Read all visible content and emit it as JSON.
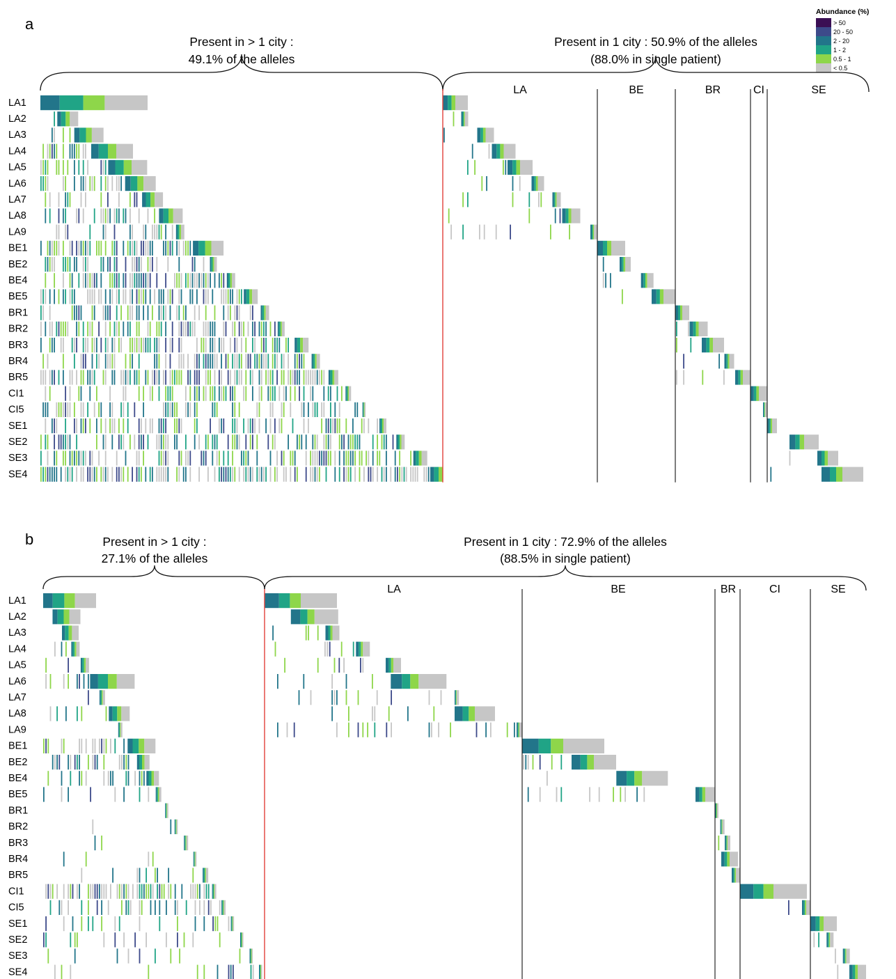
{
  "colors": {
    "gt50": "#3b0f54",
    "20to50": "#3d4a8a",
    "2to20": "#22758a",
    "1to2": "#20a486",
    "0.5to1": "#8ed64a",
    "lt0.5": "#c6c6c6",
    "divider_red": "#e0403a",
    "divider": "#111111"
  },
  "legend": {
    "title": "Abundance (%)",
    "items": [
      {
        "label": "> 50",
        "key": "gt50"
      },
      {
        "label": "20 - 50",
        "key": "20to50"
      },
      {
        "label": "2 - 20",
        "key": "2to20"
      },
      {
        "label": "1 - 2",
        "key": "1to2"
      },
      {
        "label": "0.5 - 1",
        "key": "0.5to1"
      },
      {
        "label": "< 0.5",
        "key": "lt0.5"
      }
    ]
  },
  "chart_data": [
    {
      "type": "heatmap",
      "panel": "a",
      "rows": [
        "LA1",
        "LA2",
        "LA3",
        "LA4",
        "LA5",
        "LA6",
        "LA7",
        "LA8",
        "LA9",
        "BE1",
        "BE2",
        "BE4",
        "BE5",
        "BR1",
        "BR2",
        "BR3",
        "BR4",
        "BR5",
        "CI1",
        "CI5",
        "SE1",
        "SE2",
        "SE3",
        "SE4"
      ],
      "shared_title_line1": "Present in > 1 city :",
      "shared_title_line2": "49.1% of the alleles",
      "single_title_line1": "Present in 1 city : 50.9% of the alleles",
      "single_title_line2": "(88.0% in single patient)",
      "shared_pct": 49.1,
      "single_pct": 50.9,
      "single_patient_pct": 88.0,
      "city_groups": [
        {
          "label": "LA",
          "rows": [
            "LA1",
            "LA9"
          ]
        },
        {
          "label": "BE",
          "rows": [
            "BE1",
            "BE5"
          ]
        },
        {
          "label": "BR",
          "rows": [
            "BR1",
            "BR5"
          ]
        },
        {
          "label": "CI",
          "rows": [
            "CI1",
            "CI5"
          ]
        },
        {
          "label": "SE",
          "rows": [
            "SE1",
            "SE4"
          ]
        }
      ]
    },
    {
      "type": "heatmap",
      "panel": "b",
      "rows": [
        "LA1",
        "LA2",
        "LA3",
        "LA4",
        "LA5",
        "LA6",
        "LA7",
        "LA8",
        "LA9",
        "BE1",
        "BE2",
        "BE4",
        "BE5",
        "BR1",
        "BR2",
        "BR3",
        "BR4",
        "BR5",
        "CI1",
        "CI5",
        "SE1",
        "SE2",
        "SE3",
        "SE4"
      ],
      "shared_title_line1": "Present in > 1 city :",
      "shared_title_line2": "27.1% of the alleles",
      "single_title_line1": "Present in 1 city : 72.9% of the alleles",
      "single_title_line2": "(88.5% in single patient)",
      "shared_pct": 27.1,
      "single_pct": 72.9,
      "single_patient_pct": 88.5,
      "city_groups": [
        {
          "label": "LA",
          "rows": [
            "LA1",
            "LA9"
          ]
        },
        {
          "label": "BE",
          "rows": [
            "BE1",
            "BE5"
          ]
        },
        {
          "label": "BR",
          "rows": [
            "BR1",
            "BR5"
          ]
        },
        {
          "label": "CI",
          "rows": [
            "CI1",
            "CI5"
          ]
        },
        {
          "label": "SE",
          "rows": [
            "SE1",
            "SE4"
          ]
        }
      ]
    }
  ]
}
